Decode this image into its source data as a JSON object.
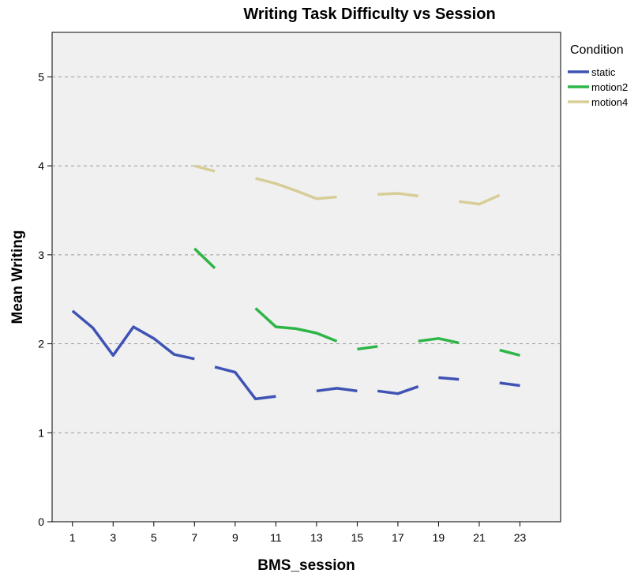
{
  "chart_data": {
    "type": "line",
    "title": "Writing Task Difficulty vs Session",
    "xlabel": "BMS_session",
    "ylabel": "Mean Writing",
    "xlim": [
      0,
      25
    ],
    "ylim": [
      0,
      5.5
    ],
    "x_ticks": [
      1,
      3,
      5,
      7,
      9,
      11,
      13,
      15,
      17,
      19,
      21,
      23
    ],
    "y_ticks": [
      0,
      1,
      2,
      3,
      4,
      5
    ],
    "grid": "horizontal-dashed",
    "legend": {
      "title": "Condition",
      "placement": "right"
    },
    "series": [
      {
        "name": "static",
        "color": "#3F53B4",
        "segments": [
          [
            [
              1,
              2.37
            ],
            [
              2,
              2.18
            ],
            [
              3,
              1.87
            ],
            [
              4,
              2.19
            ],
            [
              5,
              2.06
            ],
            [
              6,
              1.88
            ],
            [
              7,
              1.83
            ]
          ],
          [
            [
              8,
              1.74
            ],
            [
              9,
              1.68
            ],
            [
              10,
              1.38
            ],
            [
              11,
              1.41
            ]
          ],
          [
            [
              13,
              1.47
            ],
            [
              14,
              1.5
            ],
            [
              15,
              1.47
            ]
          ],
          [
            [
              16,
              1.47
            ],
            [
              17,
              1.44
            ],
            [
              18,
              1.52
            ]
          ],
          [
            [
              19,
              1.62
            ],
            [
              20,
              1.6
            ]
          ],
          [
            [
              22,
              1.56
            ],
            [
              23,
              1.53
            ]
          ]
        ]
      },
      {
        "name": "motion2",
        "color": "#2DB547",
        "segments": [
          [
            [
              7,
              3.07
            ],
            [
              8,
              2.85
            ]
          ],
          [
            [
              10,
              2.4
            ],
            [
              11,
              2.19
            ],
            [
              12,
              2.17
            ],
            [
              13,
              2.12
            ],
            [
              14,
              2.03
            ]
          ],
          [
            [
              15,
              1.94
            ],
            [
              16,
              1.97
            ]
          ],
          [
            [
              18,
              2.03
            ],
            [
              19,
              2.06
            ],
            [
              20,
              2.01
            ]
          ],
          [
            [
              22,
              1.93
            ],
            [
              23,
              1.87
            ]
          ]
        ]
      },
      {
        "name": "motion4",
        "color": "#D7CD97",
        "segments": [
          [
            [
              7,
              4.0
            ],
            [
              8,
              3.94
            ]
          ],
          [
            [
              10,
              3.86
            ],
            [
              11,
              3.8
            ],
            [
              12,
              3.72
            ],
            [
              13,
              3.63
            ],
            [
              14,
              3.65
            ]
          ],
          [
            [
              16,
              3.68
            ],
            [
              17,
              3.69
            ],
            [
              18,
              3.66
            ]
          ],
          [
            [
              20,
              3.6
            ],
            [
              21,
              3.57
            ],
            [
              22,
              3.67
            ]
          ]
        ]
      }
    ]
  }
}
